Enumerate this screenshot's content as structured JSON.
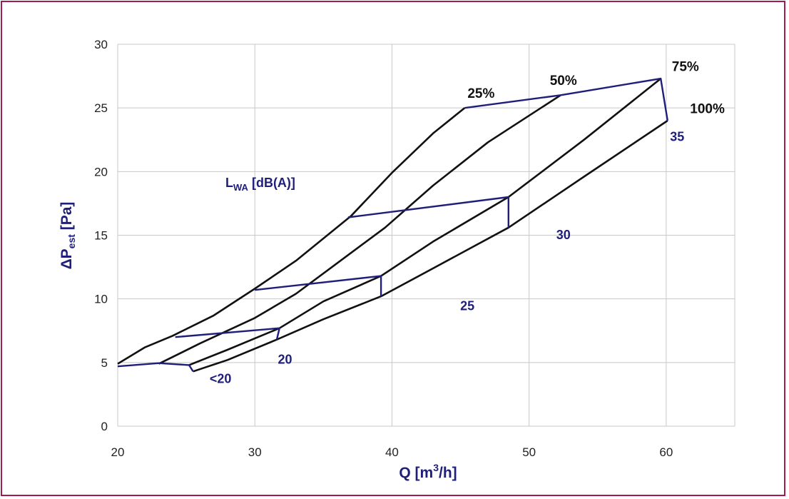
{
  "colors": {
    "frame": "#a01a56",
    "curve": "#111111",
    "noise": "#1f1f7a",
    "grid": "#c8c8c8"
  },
  "chart_data": {
    "type": "line",
    "xlabel": {
      "base": "Q [m",
      "sup": "3",
      "rest": "/h]"
    },
    "ylabel": {
      "prefix": "ΔP",
      "sub": "est",
      "rest": " [Pa]"
    },
    "xlim": [
      20,
      65
    ],
    "ylim": [
      0,
      30
    ],
    "xticks": [
      "20",
      "30",
      "40",
      "50",
      "60"
    ],
    "yticks": [
      "0",
      "5",
      "10",
      "15",
      "20",
      "25",
      "30"
    ],
    "grid": true,
    "annotation": {
      "main": "L",
      "sub": "WA",
      "rest": " [dB(A)]"
    },
    "series": [
      {
        "name": "25%",
        "points": [
          [
            20,
            4.9
          ],
          [
            22,
            6.2
          ],
          [
            24,
            7.1
          ],
          [
            27,
            8.7
          ],
          [
            30,
            10.8
          ],
          [
            33,
            13.0
          ],
          [
            37,
            16.5
          ],
          [
            40,
            19.9
          ],
          [
            43,
            23.0
          ],
          [
            45.3,
            25.0
          ]
        ]
      },
      {
        "name": "50%",
        "points": [
          [
            23,
            4.9
          ],
          [
            26,
            6.5
          ],
          [
            30,
            8.5
          ],
          [
            33,
            10.4
          ],
          [
            36,
            12.8
          ],
          [
            39.5,
            15.6
          ],
          [
            43,
            18.9
          ],
          [
            47,
            22.3
          ],
          [
            52.3,
            26.0
          ]
        ]
      },
      {
        "name": "75%",
        "points": [
          [
            25.2,
            4.8
          ],
          [
            28,
            6.0
          ],
          [
            31.8,
            7.7
          ],
          [
            35,
            9.8
          ],
          [
            39.2,
            11.8
          ],
          [
            43,
            14.5
          ],
          [
            48.5,
            18.0
          ],
          [
            54,
            22.5
          ],
          [
            59.6,
            27.3
          ]
        ]
      },
      {
        "name": "100%",
        "points": [
          [
            25.5,
            4.3
          ],
          [
            28,
            5.2
          ],
          [
            31.6,
            6.8
          ],
          [
            35,
            8.4
          ],
          [
            39.2,
            10.2
          ],
          [
            43,
            12.4
          ],
          [
            48.5,
            15.6
          ],
          [
            54,
            19.6
          ],
          [
            60.1,
            24.0
          ]
        ]
      }
    ],
    "noise_lines": [
      {
        "label": "<20",
        "points": [
          [
            20,
            4.7
          ],
          [
            23,
            4.95
          ],
          [
            25.2,
            4.8
          ],
          [
            25.5,
            4.3
          ]
        ]
      },
      {
        "label": "20",
        "points": [
          [
            24.2,
            7.0
          ],
          [
            31.8,
            7.7
          ],
          [
            31.6,
            6.8
          ]
        ]
      },
      {
        "label": "25",
        "points": [
          [
            30,
            10.7
          ],
          [
            39.2,
            11.8
          ],
          [
            39.2,
            10.2
          ]
        ]
      },
      {
        "label": "30",
        "points": [
          [
            36.8,
            16.4
          ],
          [
            48.5,
            18.0
          ],
          [
            48.5,
            15.6
          ]
        ]
      },
      {
        "label": "35",
        "points": [
          [
            45.3,
            25.0
          ],
          [
            52.3,
            26.0
          ],
          [
            59.6,
            27.3
          ],
          [
            60.1,
            24.0
          ]
        ]
      }
    ],
    "curve_labels": [
      {
        "text": "25%",
        "x": 46.5,
        "y": 25.8
      },
      {
        "text": "50%",
        "x": 52.5,
        "y": 26.8
      },
      {
        "text": "75%",
        "x": 61.4,
        "y": 27.9
      },
      {
        "text": "100%",
        "x": 63.0,
        "y": 24.6
      }
    ],
    "noise_labels": [
      {
        "text": "35",
        "x": 60.8,
        "y": 22.4
      },
      {
        "text": "30",
        "x": 52.5,
        "y": 14.7
      },
      {
        "text": "25",
        "x": 45.5,
        "y": 9.1
      },
      {
        "text": "20",
        "x": 32.2,
        "y": 4.9
      },
      {
        "text": "<20",
        "x": 27.5,
        "y": 3.4
      }
    ]
  }
}
